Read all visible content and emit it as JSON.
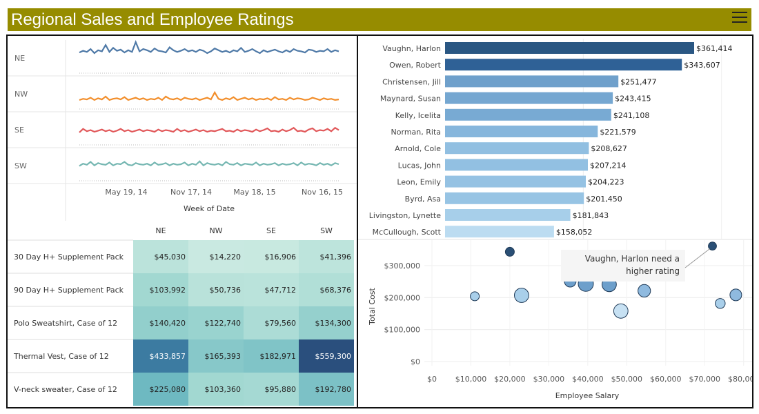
{
  "header": {
    "title": "Regional Sales and Employee Ratings",
    "bg_color": "#968c00",
    "menu_icon": "hamburger-menu-icon"
  },
  "sparklines": {
    "regions": [
      {
        "name": "NE",
        "color": "#4e79a7",
        "values": [
          32,
          35,
          33,
          38,
          31,
          36,
          34,
          45,
          33,
          40,
          35,
          37,
          32,
          36,
          33,
          50,
          34,
          38,
          36,
          33,
          39,
          35,
          34,
          32,
          41,
          36,
          33,
          35,
          38,
          34,
          36,
          33,
          37,
          35,
          31,
          34,
          39,
          36,
          33,
          35,
          32,
          36,
          34,
          40,
          33,
          35,
          38,
          34,
          31,
          36,
          33,
          35,
          37,
          34,
          32,
          36,
          33,
          38,
          35,
          34,
          32,
          37,
          36,
          33,
          35,
          34,
          38,
          33,
          36,
          34
        ]
      },
      {
        "name": "NW",
        "color": "#f28e2b",
        "values": [
          12,
          14,
          13,
          16,
          12,
          15,
          13,
          18,
          12,
          14,
          15,
          13,
          17,
          12,
          14,
          16,
          13,
          15,
          12,
          14,
          13,
          16,
          12,
          18,
          14,
          13,
          15,
          12,
          16,
          14,
          13,
          15,
          12,
          14,
          16,
          13,
          25,
          14,
          12,
          15,
          13,
          17,
          12,
          14,
          16,
          13,
          15,
          12,
          14,
          13,
          15,
          12,
          17,
          13,
          14,
          12,
          16,
          13,
          15,
          14,
          12,
          13,
          16,
          14,
          12,
          15,
          13,
          14,
          12,
          13
        ]
      },
      {
        "name": "SE",
        "color": "#e15759",
        "values": [
          18,
          24,
          20,
          22,
          19,
          21,
          23,
          20,
          22,
          19,
          21,
          24,
          20,
          22,
          19,
          21,
          23,
          20,
          22,
          21,
          19,
          23,
          20,
          22,
          21,
          19,
          24,
          20,
          22,
          19,
          21,
          23,
          20,
          22,
          19,
          21,
          20,
          22,
          24,
          20,
          21,
          19,
          23,
          20,
          22,
          21,
          19,
          23,
          20,
          22,
          25,
          20,
          21,
          19,
          23,
          20,
          22,
          26,
          20,
          21,
          19,
          23,
          25,
          20,
          22,
          21,
          24,
          20,
          26,
          22
        ]
      },
      {
        "name": "SW",
        "color": "#76b7b2",
        "values": [
          22,
          26,
          24,
          29,
          23,
          27,
          25,
          24,
          28,
          23,
          26,
          25,
          29,
          24,
          23,
          27,
          25,
          24,
          26,
          23,
          28,
          24,
          25,
          27,
          23,
          26,
          24,
          25,
          28,
          23,
          26,
          24,
          30,
          23,
          27,
          25,
          24,
          26,
          23,
          29,
          25,
          24,
          27,
          23,
          26,
          25,
          24,
          28,
          23,
          26,
          24,
          25,
          27,
          23,
          26,
          24,
          25,
          27,
          23,
          28,
          24,
          26,
          25,
          23,
          27,
          24,
          26,
          23,
          27,
          25
        ]
      }
    ],
    "x_ticks": [
      "May 19, 14",
      "Nov 17, 14",
      "May 18, 15",
      "Nov 16, 15"
    ],
    "xlabel": "Week of Date"
  },
  "heatmap": {
    "columns": [
      "NE",
      "NW",
      "SE",
      "SW"
    ],
    "rows": [
      {
        "label": "30 Day H+ Supplement Pack",
        "values": [
          45030,
          14220,
          16906,
          41396
        ],
        "text": [
          "$45,030",
          "$14,220",
          "$16,906",
          "$41,396"
        ]
      },
      {
        "label": "90 Day H+ Supplement Pack",
        "values": [
          103992,
          50736,
          47712,
          68376
        ],
        "text": [
          "$103,992",
          "$50,736",
          "$47,712",
          "$68,376"
        ]
      },
      {
        "label": "Polo Sweatshirt, Case of 12",
        "values": [
          140420,
          122740,
          79560,
          134300
        ],
        "text": [
          "$140,420",
          "$122,740",
          "$79,560",
          "$134,300"
        ]
      },
      {
        "label": "Thermal Vest, Case of 12",
        "values": [
          433857,
          165393,
          182971,
          559300
        ],
        "text": [
          "$433,857",
          "$165,393",
          "$182,971",
          "$559,300"
        ]
      },
      {
        "label": "V-neck sweater, Case of 12",
        "values": [
          225080,
          103360,
          95880,
          192780
        ],
        "text": [
          "$225,080",
          "$103,360",
          "$95,880",
          "$192,780"
        ]
      }
    ]
  },
  "chart_data": [
    {
      "type": "bar",
      "orientation": "horizontal",
      "categories": [
        "Vaughn, Harlon",
        "Owen, Robert",
        "Christensen, Jill",
        "Maynard, Susan",
        "Kelly, Icelita",
        "Norman, Rita",
        "Arnold, Cole",
        "Lucas, John",
        "Leon, Emily",
        "Byrd, Asa",
        "Livingston, Lynette",
        "McCullough, Scott"
      ],
      "values": [
        361414,
        343607,
        251477,
        243415,
        241108,
        221579,
        208627,
        207214,
        204223,
        201450,
        181843,
        158052
      ],
      "labels": [
        "$361,414",
        "$343,607",
        "$251,477",
        "$243,415",
        "$241,108",
        "$221,579",
        "$208,627",
        "$207,214",
        "$204,223",
        "$201,450",
        "$181,843",
        "$158,052"
      ],
      "xlim": [
        0,
        400000
      ]
    },
    {
      "type": "scatter",
      "xlabel": "Employee Salary",
      "ylabel": "Total Cost",
      "xlim": [
        0,
        82000
      ],
      "ylim": [
        0,
        380000
      ],
      "x_ticks": [
        "$0",
        "$10,000",
        "$20,000",
        "$30,000",
        "$40,000",
        "$50,000",
        "$60,000",
        "$70,000",
        "$80,000"
      ],
      "x_tick_values": [
        0,
        10000,
        20000,
        30000,
        40000,
        50000,
        60000,
        70000,
        80000
      ],
      "y_ticks": [
        "$0",
        "$100,000",
        "$200,000",
        "$300,000"
      ],
      "y_tick_values": [
        0,
        100000,
        200000,
        300000
      ],
      "points": [
        {
          "x": 20000,
          "y": 343607,
          "size": 1.0,
          "color": "#2a4f75"
        },
        {
          "x": 72000,
          "y": 361414,
          "size": 0.9,
          "color": "#2a4f75"
        },
        {
          "x": 11000,
          "y": 204223,
          "size": 1.0,
          "color": "#a9cfea"
        },
        {
          "x": 23000,
          "y": 207214,
          "size": 1.6,
          "color": "#a9cfea"
        },
        {
          "x": 35500,
          "y": 251477,
          "size": 1.3,
          "color": "#6d9fcb"
        },
        {
          "x": 39500,
          "y": 243415,
          "size": 1.7,
          "color": "#6d9fcb"
        },
        {
          "x": 45500,
          "y": 241108,
          "size": 1.6,
          "color": "#6d9fcb"
        },
        {
          "x": 48500,
          "y": 158052,
          "size": 1.6,
          "color": "#c7e1f3"
        },
        {
          "x": 54500,
          "y": 221579,
          "size": 1.4,
          "color": "#8fbadf"
        },
        {
          "x": 74000,
          "y": 181843,
          "size": 1.1,
          "color": "#a9cfea"
        },
        {
          "x": 78000,
          "y": 208627,
          "size": 1.3,
          "color": "#8fbadf"
        }
      ],
      "annotation": {
        "lines": [
          "Vaughn, Harlon need a",
          "higher rating"
        ]
      }
    }
  ]
}
